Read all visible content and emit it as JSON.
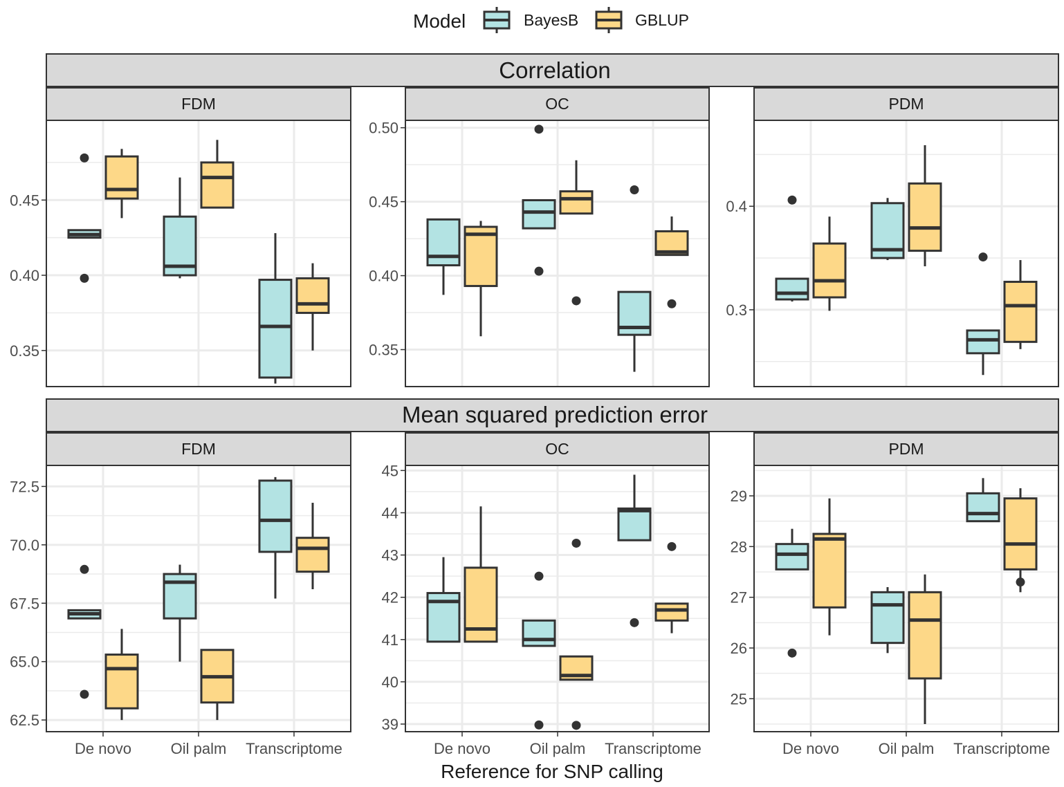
{
  "chart_data": {
    "type": "boxplot",
    "xlabel": "Reference for SNP calling",
    "legend": {
      "title": "Model",
      "position": "top",
      "entries": [
        "BayesB",
        "GBLUP"
      ]
    },
    "colors": {
      "BayesB": "#b3e3e3",
      "GBLUP": "#fdd888",
      "stroke": "#333333",
      "strip": "#d9d9d9",
      "grid": "#ebebeb"
    },
    "categories": [
      "De novo",
      "Oil palm",
      "Transcriptome"
    ],
    "rows": [
      {
        "title": "Correlation",
        "panels": [
          {
            "title": "FDM",
            "ylim": [
              0.326,
              0.503
            ],
            "yticks": [
              0.35,
              0.4,
              0.45
            ],
            "tick_labels": [
              "0.35",
              "0.40",
              "0.45"
            ],
            "boxes": [
              {
                "category": "De novo",
                "model": "BayesB",
                "lower": 0.425,
                "q1": 0.425,
                "median": 0.427,
                "q3": 0.43,
                "upper": 0.43,
                "outliers": [
                  0.478,
                  0.398
                ]
              },
              {
                "category": "De novo",
                "model": "GBLUP",
                "lower": 0.438,
                "q1": 0.451,
                "median": 0.457,
                "q3": 0.479,
                "upper": 0.484,
                "outliers": []
              },
              {
                "category": "Oil palm",
                "model": "BayesB",
                "lower": 0.398,
                "q1": 0.4,
                "median": 0.406,
                "q3": 0.439,
                "upper": 0.465,
                "outliers": []
              },
              {
                "category": "Oil palm",
                "model": "GBLUP",
                "lower": 0.445,
                "q1": 0.445,
                "median": 0.465,
                "q3": 0.475,
                "upper": 0.49,
                "outliers": []
              },
              {
                "category": "Transcriptome",
                "model": "BayesB",
                "lower": 0.328,
                "q1": 0.332,
                "median": 0.366,
                "q3": 0.397,
                "upper": 0.428,
                "outliers": []
              },
              {
                "category": "Transcriptome",
                "model": "GBLUP",
                "lower": 0.35,
                "q1": 0.375,
                "median": 0.381,
                "q3": 0.398,
                "upper": 0.408,
                "outliers": []
              }
            ]
          },
          {
            "title": "OC",
            "ylim": [
              0.325,
              0.505
            ],
            "yticks": [
              0.35,
              0.4,
              0.45,
              0.5
            ],
            "tick_labels": [
              "0.35",
              "0.40",
              "0.45",
              "0.50"
            ],
            "boxes": [
              {
                "category": "De novo",
                "model": "BayesB",
                "lower": 0.387,
                "q1": 0.407,
                "median": 0.413,
                "q3": 0.438,
                "upper": 0.438,
                "outliers": []
              },
              {
                "category": "De novo",
                "model": "GBLUP",
                "lower": 0.359,
                "q1": 0.393,
                "median": 0.428,
                "q3": 0.433,
                "upper": 0.437,
                "outliers": []
              },
              {
                "category": "Oil palm",
                "model": "BayesB",
                "lower": 0.432,
                "q1": 0.432,
                "median": 0.443,
                "q3": 0.451,
                "upper": 0.451,
                "outliers": [
                  0.499,
                  0.403
                ]
              },
              {
                "category": "Oil palm",
                "model": "GBLUP",
                "lower": 0.442,
                "q1": 0.442,
                "median": 0.452,
                "q3": 0.457,
                "upper": 0.478,
                "outliers": [
                  0.383
                ]
              },
              {
                "category": "Transcriptome",
                "model": "BayesB",
                "lower": 0.335,
                "q1": 0.36,
                "median": 0.365,
                "q3": 0.389,
                "upper": 0.389,
                "outliers": [
                  0.458
                ]
              },
              {
                "category": "Transcriptome",
                "model": "GBLUP",
                "lower": 0.414,
                "q1": 0.414,
                "median": 0.416,
                "q3": 0.43,
                "upper": 0.44,
                "outliers": [
                  0.381
                ]
              }
            ]
          },
          {
            "title": "PDM",
            "ylim": [
              0.2258,
              0.483
            ],
            "yticks": [
              0.3,
              0.4
            ],
            "tick_labels": [
              "0.3",
              "0.4"
            ],
            "boxes": [
              {
                "category": "De novo",
                "model": "BayesB",
                "lower": 0.308,
                "q1": 0.31,
                "median": 0.316,
                "q3": 0.33,
                "upper": 0.33,
                "outliers": [
                  0.406
                ]
              },
              {
                "category": "De novo",
                "model": "GBLUP",
                "lower": 0.299,
                "q1": 0.312,
                "median": 0.328,
                "q3": 0.364,
                "upper": 0.39,
                "outliers": []
              },
              {
                "category": "Oil palm",
                "model": "BayesB",
                "lower": 0.348,
                "q1": 0.35,
                "median": 0.358,
                "q3": 0.403,
                "upper": 0.408,
                "outliers": []
              },
              {
                "category": "Oil palm",
                "model": "GBLUP",
                "lower": 0.342,
                "q1": 0.357,
                "median": 0.379,
                "q3": 0.422,
                "upper": 0.459,
                "outliers": []
              },
              {
                "category": "Transcriptome",
                "model": "BayesB",
                "lower": 0.237,
                "q1": 0.258,
                "median": 0.271,
                "q3": 0.28,
                "upper": 0.28,
                "outliers": [
                  0.351
                ]
              },
              {
                "category": "Transcriptome",
                "model": "GBLUP",
                "lower": 0.262,
                "q1": 0.269,
                "median": 0.304,
                "q3": 0.327,
                "upper": 0.348,
                "outliers": []
              }
            ]
          }
        ]
      },
      {
        "title": "Mean squared prediction error",
        "panels": [
          {
            "title": "FDM",
            "ylim": [
              62.0,
              73.4
            ],
            "yticks": [
              62.5,
              65.0,
              67.5,
              70.0,
              72.5
            ],
            "tick_labels": [
              "62.5",
              "65.0",
              "67.5",
              "70.0",
              "72.5"
            ],
            "boxes": [
              {
                "category": "De novo",
                "model": "BayesB",
                "lower": 66.85,
                "q1": 66.85,
                "median": 67.05,
                "q3": 67.2,
                "upper": 67.2,
                "outliers": [
                  68.95,
                  63.6
                ]
              },
              {
                "category": "De novo",
                "model": "GBLUP",
                "lower": 62.5,
                "q1": 63.0,
                "median": 64.7,
                "q3": 65.3,
                "upper": 66.4,
                "outliers": []
              },
              {
                "category": "Oil palm",
                "model": "BayesB",
                "lower": 65.0,
                "q1": 66.85,
                "median": 68.4,
                "q3": 68.75,
                "upper": 69.15,
                "outliers": []
              },
              {
                "category": "Oil palm",
                "model": "GBLUP",
                "lower": 62.5,
                "q1": 63.25,
                "median": 64.35,
                "q3": 65.5,
                "upper": 65.5,
                "outliers": []
              },
              {
                "category": "Transcriptome",
                "model": "BayesB",
                "lower": 67.7,
                "q1": 69.7,
                "median": 71.05,
                "q3": 72.75,
                "upper": 72.9,
                "outliers": []
              },
              {
                "category": "Transcriptome",
                "model": "GBLUP",
                "lower": 68.1,
                "q1": 68.85,
                "median": 69.85,
                "q3": 70.3,
                "upper": 71.8,
                "outliers": []
              }
            ]
          },
          {
            "title": "OC",
            "ylim": [
              38.82,
              45.12
            ],
            "yticks": [
              39,
              40,
              41,
              42,
              43,
              44,
              45
            ],
            "tick_labels": [
              "39",
              "40",
              "41",
              "42",
              "43",
              "44",
              "45"
            ],
            "boxes": [
              {
                "category": "De novo",
                "model": "BayesB",
                "lower": 40.95,
                "q1": 40.95,
                "median": 41.9,
                "q3": 42.1,
                "upper": 42.95,
                "outliers": []
              },
              {
                "category": "De novo",
                "model": "GBLUP",
                "lower": 40.95,
                "q1": 40.95,
                "median": 41.25,
                "q3": 42.7,
                "upper": 44.15,
                "outliers": []
              },
              {
                "category": "Oil palm",
                "model": "BayesB",
                "lower": 40.85,
                "q1": 40.85,
                "median": 41.0,
                "q3": 41.45,
                "upper": 41.45,
                "outliers": [
                  42.5,
                  38.98
                ]
              },
              {
                "category": "Oil palm",
                "model": "GBLUP",
                "lower": 40.05,
                "q1": 40.05,
                "median": 40.15,
                "q3": 40.6,
                "upper": 40.6,
                "outliers": [
                  43.28,
                  38.97
                ]
              },
              {
                "category": "Transcriptome",
                "model": "BayesB",
                "lower": 43.35,
                "q1": 43.35,
                "median": 44.05,
                "q3": 44.1,
                "upper": 44.9,
                "outliers": [
                  41.4
                ]
              },
              {
                "category": "Transcriptome",
                "model": "GBLUP",
                "lower": 41.15,
                "q1": 41.45,
                "median": 41.7,
                "q3": 41.85,
                "upper": 41.85,
                "outliers": [
                  43.2
                ]
              }
            ]
          },
          {
            "title": "PDM",
            "ylim": [
              24.35,
              29.6
            ],
            "yticks": [
              25,
              26,
              27,
              28,
              29
            ],
            "tick_labels": [
              "25",
              "26",
              "27",
              "28",
              "29"
            ],
            "boxes": [
              {
                "category": "De novo",
                "model": "BayesB",
                "lower": 27.55,
                "q1": 27.55,
                "median": 27.85,
                "q3": 28.05,
                "upper": 28.35,
                "outliers": [
                  25.9
                ]
              },
              {
                "category": "De novo",
                "model": "GBLUP",
                "lower": 26.25,
                "q1": 26.8,
                "median": 28.15,
                "q3": 28.25,
                "upper": 28.95,
                "outliers": []
              },
              {
                "category": "Oil palm",
                "model": "BayesB",
                "lower": 25.9,
                "q1": 26.1,
                "median": 26.85,
                "q3": 27.1,
                "upper": 27.2,
                "outliers": []
              },
              {
                "category": "Oil palm",
                "model": "GBLUP",
                "lower": 24.5,
                "q1": 25.4,
                "median": 26.55,
                "q3": 27.1,
                "upper": 27.45,
                "outliers": []
              },
              {
                "category": "Transcriptome",
                "model": "BayesB",
                "lower": 28.5,
                "q1": 28.5,
                "median": 28.65,
                "q3": 29.05,
                "upper": 29.35,
                "outliers": []
              },
              {
                "category": "Transcriptome",
                "model": "GBLUP",
                "lower": 27.1,
                "q1": 27.55,
                "median": 28.05,
                "q3": 28.95,
                "upper": 29.15,
                "outliers": [
                  27.3
                ]
              }
            ]
          }
        ]
      }
    ]
  }
}
